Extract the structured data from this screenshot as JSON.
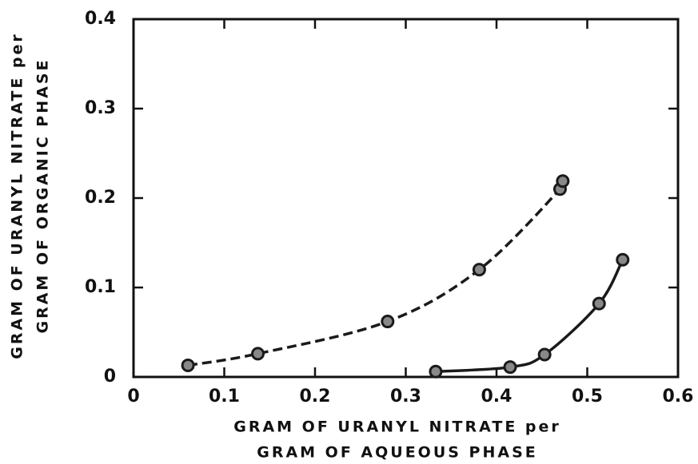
{
  "chart_data": {
    "type": "scatter",
    "xlabel": [
      "GRAM OF URANYL NITRATE per",
      "GRAM OF AQUEOUS PHASE"
    ],
    "ylabel": [
      "GRAM OF URANYL NITRATE per",
      "GRAM OF ORGANIC PHASE"
    ],
    "xlim": [
      0,
      0.6
    ],
    "xticks": [
      0,
      0.1,
      0.2,
      0.3,
      0.4,
      0.5,
      0.6
    ],
    "ylim": [
      0,
      0.4
    ],
    "yticks": [
      0,
      0.1,
      0.2,
      0.3,
      0.4
    ],
    "series": [
      {
        "color": "#1a1a1a",
        "line": "dashed",
        "x": [
          0.06,
          0.137,
          0.28,
          0.381,
          0.47,
          0.473
        ],
        "values": [
          0.013,
          0.026,
          0.062,
          0.12,
          0.21,
          0.219
        ]
      },
      {
        "color": "#1a1a1a",
        "line": "solid",
        "x": [
          0.333,
          0.415,
          0.453,
          0.513,
          0.539
        ],
        "values": [
          0.006,
          0.011,
          0.025,
          0.082,
          0.131
        ]
      }
    ]
  }
}
